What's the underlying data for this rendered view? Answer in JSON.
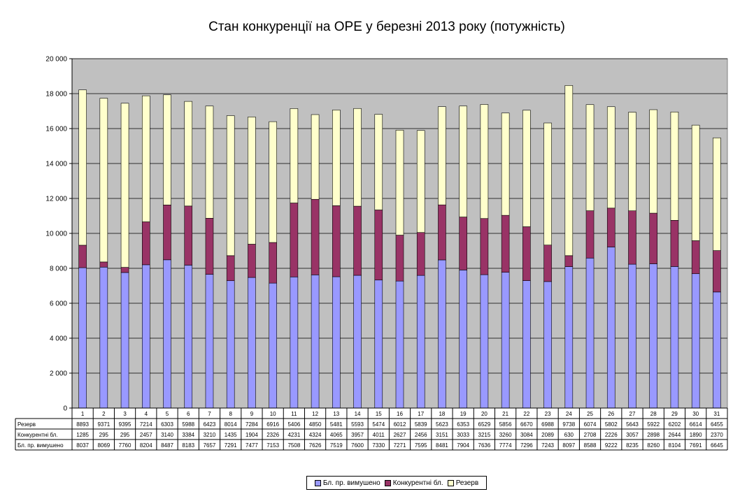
{
  "chart_data": {
    "type": "bar",
    "stacked": true,
    "title": "Стан конкуренції на ОРЕ  у березні 2013 року (потужність)",
    "categories": [
      "1",
      "2",
      "3",
      "4",
      "5",
      "6",
      "7",
      "8",
      "9",
      "10",
      "11",
      "12",
      "13",
      "14",
      "15",
      "16",
      "17",
      "18",
      "19",
      "20",
      "21",
      "22",
      "23",
      "24",
      "25",
      "26",
      "27",
      "28",
      "29",
      "30",
      "31"
    ],
    "ylim": [
      0,
      20000
    ],
    "yticks": [
      "0",
      "2 000",
      "4 000",
      "6 000",
      "8 000",
      "10 000",
      "12 000",
      "14 000",
      "16 000",
      "18 000",
      "20 000"
    ],
    "grid": true,
    "legend_position": "bottom",
    "series": [
      {
        "name": "Бл. пр. вимушено",
        "color": "#9999ff",
        "values": [
          8037,
          8069,
          7760,
          8204,
          8487,
          8183,
          7657,
          7291,
          7477,
          7153,
          7508,
          7626,
          7519,
          7600,
          7330,
          7271,
          7595,
          8481,
          7904,
          7636,
          7774,
          7296,
          7243,
          8097,
          8588,
          9222,
          8235,
          8260,
          8104,
          7691,
          6645
        ]
      },
      {
        "name": "Конкурентні бл.",
        "color": "#993366",
        "values": [
          1285,
          295,
          295,
          2457,
          3140,
          3384,
          3210,
          1435,
          1904,
          2326,
          4231,
          4324,
          4065,
          3957,
          4011,
          2627,
          2456,
          3151,
          3033,
          3215,
          3260,
          3084,
          2089,
          630,
          2708,
          2226,
          3057,
          2898,
          2644,
          1890,
          2370
        ]
      },
      {
        "name": "Резерв",
        "color": "#ffffcc",
        "values": [
          8893,
          9371,
          9395,
          7214,
          6303,
          5988,
          6423,
          8014,
          7284,
          6916,
          5406,
          4850,
          5481,
          5593,
          5474,
          6012,
          5839,
          5623,
          6353,
          6529,
          5856,
          6670,
          6988,
          9738,
          6074,
          5802,
          5643,
          5922,
          6202,
          6614,
          6455
        ]
      }
    ],
    "table_rows": [
      {
        "label": "Резерв",
        "series_index": 2
      },
      {
        "label": "Конкурентні бл.",
        "series_index": 1
      },
      {
        "label": "Бл. пр. вимушено",
        "series_index": 0
      }
    ]
  }
}
